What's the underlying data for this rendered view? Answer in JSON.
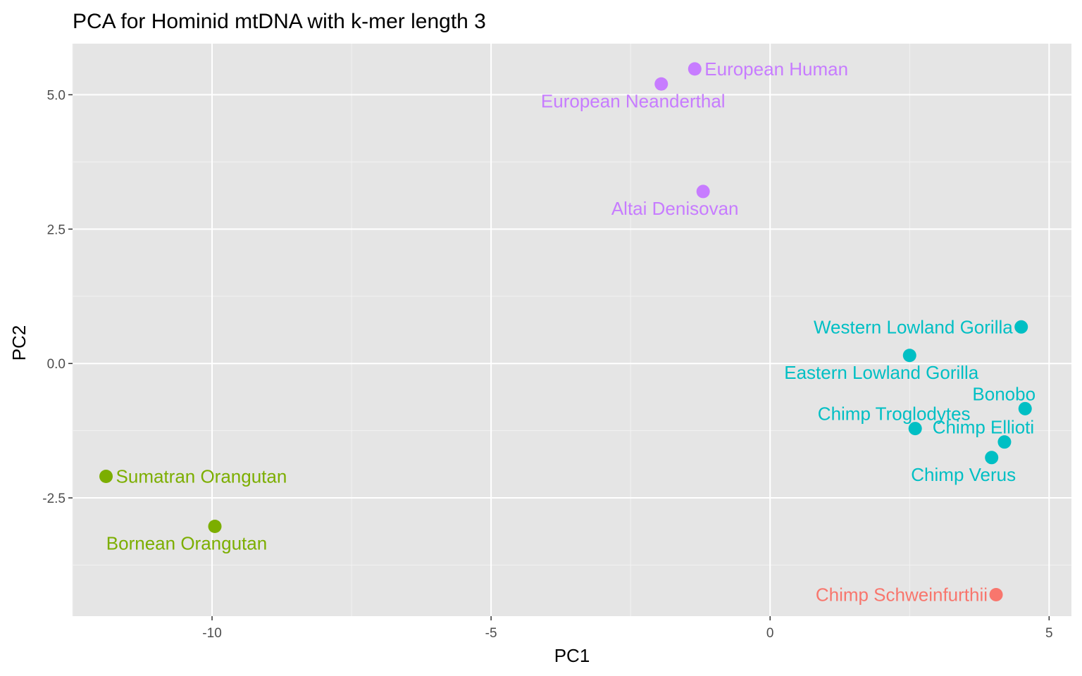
{
  "chart_data": {
    "type": "scatter",
    "title": "PCA for Hominid mtDNA with k-mer length 3",
    "xlabel": "PC1",
    "ylabel": "PC2",
    "xlim": [
      -12.5,
      5.4
    ],
    "ylim": [
      -4.7,
      5.95
    ],
    "x_ticks": [
      -10,
      -5,
      0,
      5
    ],
    "x_tick_labels": [
      "-10",
      "-5",
      "0",
      "5"
    ],
    "y_ticks": [
      -2.5,
      0.0,
      2.5,
      5.0
    ],
    "y_tick_labels": [
      "-2.5",
      "0.0",
      "2.5",
      "5.0"
    ],
    "grid": true,
    "legend": "none",
    "points": [
      {
        "label": "European Human",
        "x": -1.35,
        "y": 5.48,
        "color": "#C77CFF",
        "label_pos": "right"
      },
      {
        "label": "European Neanderthal",
        "x": -1.95,
        "y": 5.2,
        "color": "#C77CFF",
        "label_pos": "below"
      },
      {
        "label": "Altai Denisovan",
        "x": -1.2,
        "y": 3.2,
        "color": "#C77CFF",
        "label_pos": "below"
      },
      {
        "label": "Western Lowland Gorilla",
        "x": 4.5,
        "y": 0.68,
        "color": "#00BFC4",
        "label_pos": "left"
      },
      {
        "label": "Eastern Lowland Gorilla",
        "x": 2.5,
        "y": 0.15,
        "color": "#00BFC4",
        "label_pos": "below"
      },
      {
        "label": "Bonobo",
        "x": 4.57,
        "y": -0.84,
        "color": "#00BFC4",
        "label_pos": "above"
      },
      {
        "label": "Chimp Troglodytes",
        "x": 2.6,
        "y": -1.21,
        "color": "#00BFC4",
        "label_pos": "above"
      },
      {
        "label": "Chimp Ellioti",
        "x": 4.2,
        "y": -1.46,
        "color": "#00BFC4",
        "label_pos": "above"
      },
      {
        "label": "Chimp Verus",
        "x": 3.97,
        "y": -1.75,
        "color": "#00BFC4",
        "label_pos": "below"
      },
      {
        "label": "Sumatran Orangutan",
        "x": -11.9,
        "y": -2.1,
        "color": "#7CAE00",
        "label_pos": "right"
      },
      {
        "label": "Bornean Orangutan",
        "x": -9.95,
        "y": -3.03,
        "color": "#7CAE00",
        "label_pos": "below"
      },
      {
        "label": "Chimp Schweinfurthii",
        "x": 4.05,
        "y": -4.3,
        "color": "#F8766D",
        "label_pos": "left"
      }
    ]
  }
}
